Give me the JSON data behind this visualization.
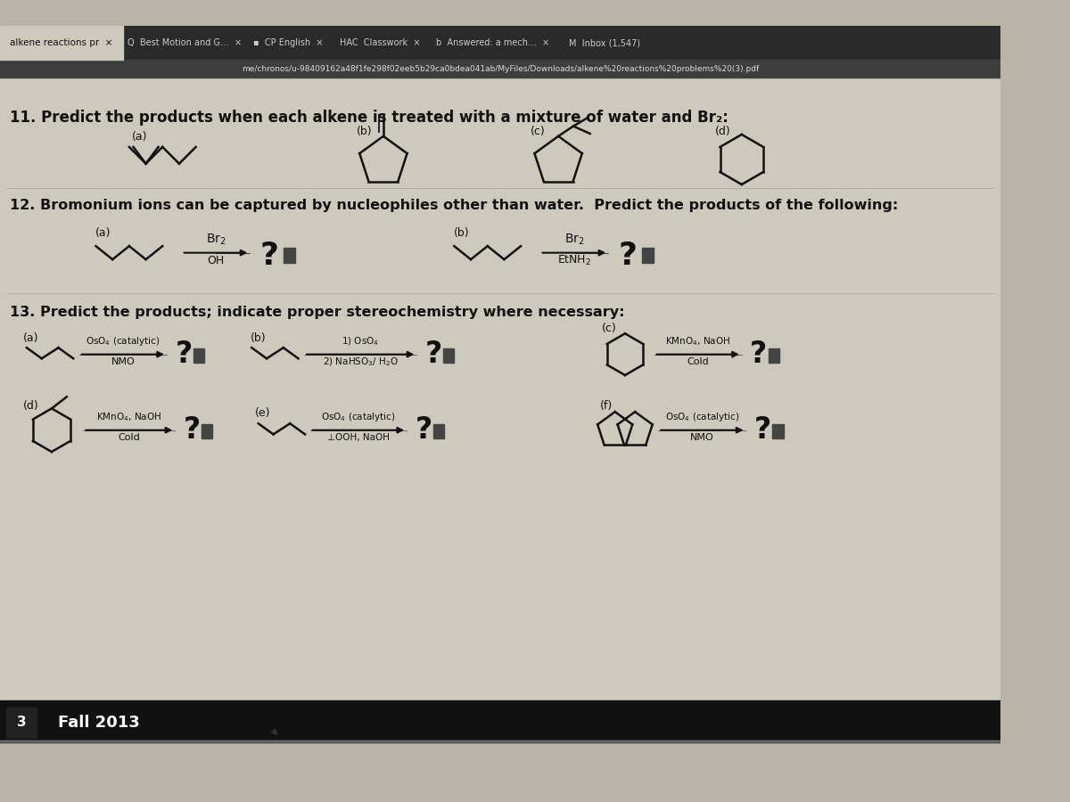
{
  "bg_color": "#b8b4a8",
  "content_bg": "#cdc9bc",
  "browser_chrome_color": "#2a2a2a",
  "tab_active_bg": "#cdc9bc",
  "url_bar_color": "#3d3d3d",
  "title11": "11. Predict the products when each alkene is treated with a mixture of water and Br₂:",
  "title12": "12. Bromonium ions can be captured by nucleophiles other than water.  Predict the products of the following:",
  "title13": "13. Predict the products; indicate proper stereochemistry where necessary:",
  "footer_text": "Fall 2013",
  "page_number": "3",
  "url": "me/chronos/u-98409162a48f1fe298f02eeb5b29ca0bdea041ab/MyFiles/Downloads/alkene%20reactions%20problems%20(3).pdf",
  "lc": "#111111",
  "lw": 1.8
}
